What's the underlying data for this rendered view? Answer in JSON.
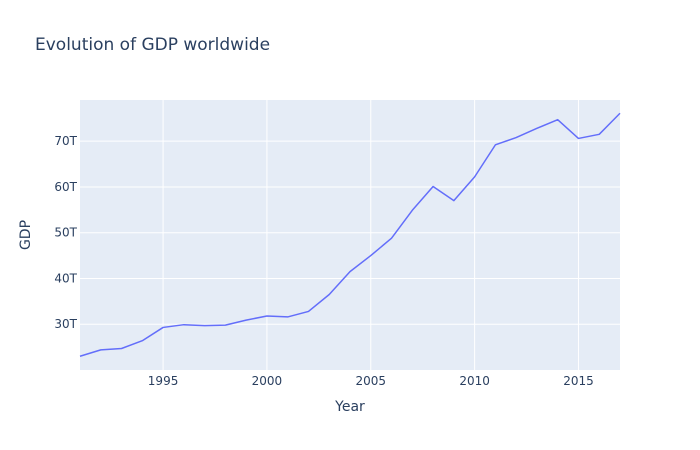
{
  "chart_data": {
    "type": "line",
    "title": "Evolution of GDP worldwide",
    "xlabel": "Year",
    "ylabel": "GDP",
    "xlim": [
      1991,
      2017
    ],
    "ylim": [
      20,
      79
    ],
    "x_ticks": [
      1995,
      2000,
      2005,
      2010,
      2015
    ],
    "y_ticks": [
      30,
      40,
      50,
      60,
      70
    ],
    "y_tick_labels": [
      "30T",
      "40T",
      "50T",
      "60T",
      "70T"
    ],
    "grid": true,
    "plot_background": "#e5ecf6",
    "grid_color": "#ffffff",
    "series": [
      {
        "color": "#636efa",
        "x": [
          1991,
          1992,
          1993,
          1994,
          1995,
          1996,
          1997,
          1998,
          1999,
          2000,
          2001,
          2002,
          2003,
          2004,
          2005,
          2006,
          2007,
          2008,
          2009,
          2010,
          2011,
          2012,
          2013,
          2014,
          2015,
          2016,
          2017
        ],
        "values": [
          23.0,
          24.4,
          24.7,
          26.4,
          29.3,
          29.9,
          29.7,
          29.8,
          30.9,
          31.8,
          31.6,
          32.8,
          36.5,
          41.5,
          45.0,
          48.8,
          54.9,
          60.1,
          57.0,
          62.2,
          69.2,
          70.8,
          72.8,
          74.7,
          70.6,
          71.5,
          76.1
        ]
      }
    ]
  }
}
